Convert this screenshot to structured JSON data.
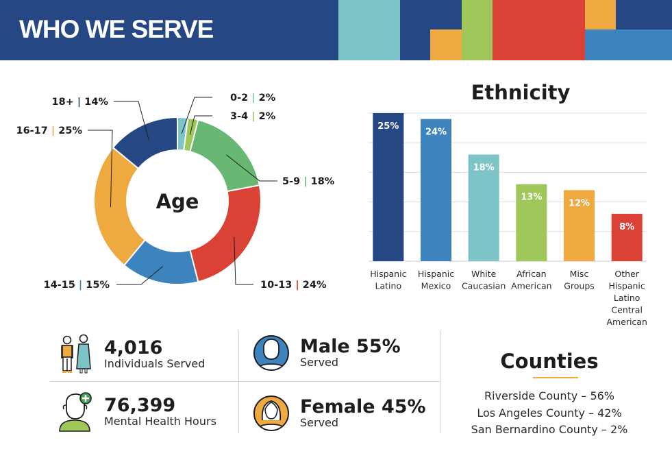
{
  "header": {
    "title": "WHO WE SERVE",
    "background": "#254884",
    "palette": [
      "#7dc4c9",
      "#254884",
      "#eeaa40",
      "#a0c75a",
      "#db4236",
      "#3d84bf"
    ]
  },
  "colors": {
    "navy": "#254884",
    "blue": "#3d84bf",
    "teal": "#7dc4c9",
    "lime": "#a0c75a",
    "green": "#68b874",
    "red": "#db4236",
    "orange": "#eeaa40"
  },
  "chart_data": [
    {
      "type": "pie",
      "subtype": "donut",
      "title": "Age",
      "categories": [
        "0-2",
        "3-4",
        "5-9",
        "10-13",
        "14-15",
        "16-17",
        "18+"
      ],
      "values": [
        2,
        2,
        18,
        24,
        15,
        25,
        14
      ],
      "labels": [
        "0-2 | 2%",
        "3-4 | 2%",
        "5-9 | 18%",
        "10-13 | 24%",
        "14-15 | 15%",
        "16-17 | 25%",
        "18+ | 14%"
      ],
      "colors": [
        "#7dc4c9",
        "#a0c75a",
        "#68b874",
        "#db4236",
        "#3d84bf",
        "#eeaa40",
        "#254884"
      ],
      "legend": "leader-line labels around ring"
    },
    {
      "type": "bar",
      "title": "Ethnicity",
      "categories": [
        "Hispanic Latino",
        "Hispanic Mexico",
        "White Caucasian",
        "African American",
        "Misc Groups",
        "Other Hispanic Latino Central American"
      ],
      "category_lines": [
        [
          "Hispanic",
          "Latino"
        ],
        [
          "Hispanic",
          "Mexico"
        ],
        [
          "White",
          "Caucasian"
        ],
        [
          "African",
          "American"
        ],
        [
          "Misc",
          "Groups"
        ],
        [
          "Other",
          "Hispanic",
          "Latino",
          "Central",
          "American"
        ]
      ],
      "values": [
        25,
        24,
        18,
        13,
        12,
        8
      ],
      "data_labels": [
        "25%",
        "24%",
        "18%",
        "13%",
        "12%",
        "8%"
      ],
      "colors": [
        "#254884",
        "#3d84bf",
        "#7dc4c9",
        "#a0c75a",
        "#eeaa40",
        "#db4236"
      ],
      "ylim": [
        0,
        25
      ],
      "grid": true,
      "xlabel": "",
      "ylabel": ""
    }
  ],
  "stats": {
    "individuals": {
      "value": "4,016",
      "label": "Individuals Served"
    },
    "hours": {
      "value": "76,399",
      "label": "Mental Health Hours"
    },
    "male": {
      "value": "Male 55%",
      "label": "Served"
    },
    "female": {
      "value": "Female 45%",
      "label": "Served"
    }
  },
  "counties": {
    "title": "Counties",
    "items": [
      "Riverside County – 56%",
      "Los Angeles County – 42%",
      "San Bernardino County – 2%"
    ]
  }
}
